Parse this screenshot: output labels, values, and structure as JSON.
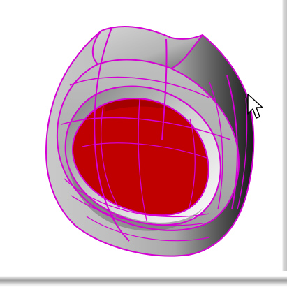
{
  "viewport": {
    "view": "perspective",
    "background_color": "#ffffff"
  },
  "model": {
    "part": "bored-cylindrical-part",
    "surface_color": "#b8b8b8",
    "selected_face_color": "#c00000",
    "edge_highlight_color": "#d400d4"
  },
  "cursor": {
    "icon": "arrow-cursor-icon"
  }
}
